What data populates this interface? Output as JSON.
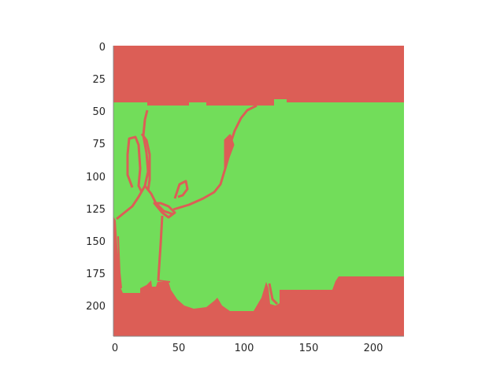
{
  "image_display": {
    "extent_x": [
      0,
      224
    ],
    "extent_y": [
      0,
      224
    ],
    "origin": "top-left",
    "colors": {
      "background_class": "#dc5e56",
      "foreground_class": "#72dd5a"
    },
    "x_ticks": [
      "0",
      "50",
      "100",
      "150",
      "200"
    ],
    "y_ticks": [
      "0",
      "25",
      "50",
      "75",
      "100",
      "125",
      "150",
      "175",
      "200"
    ],
    "grid": false
  }
}
